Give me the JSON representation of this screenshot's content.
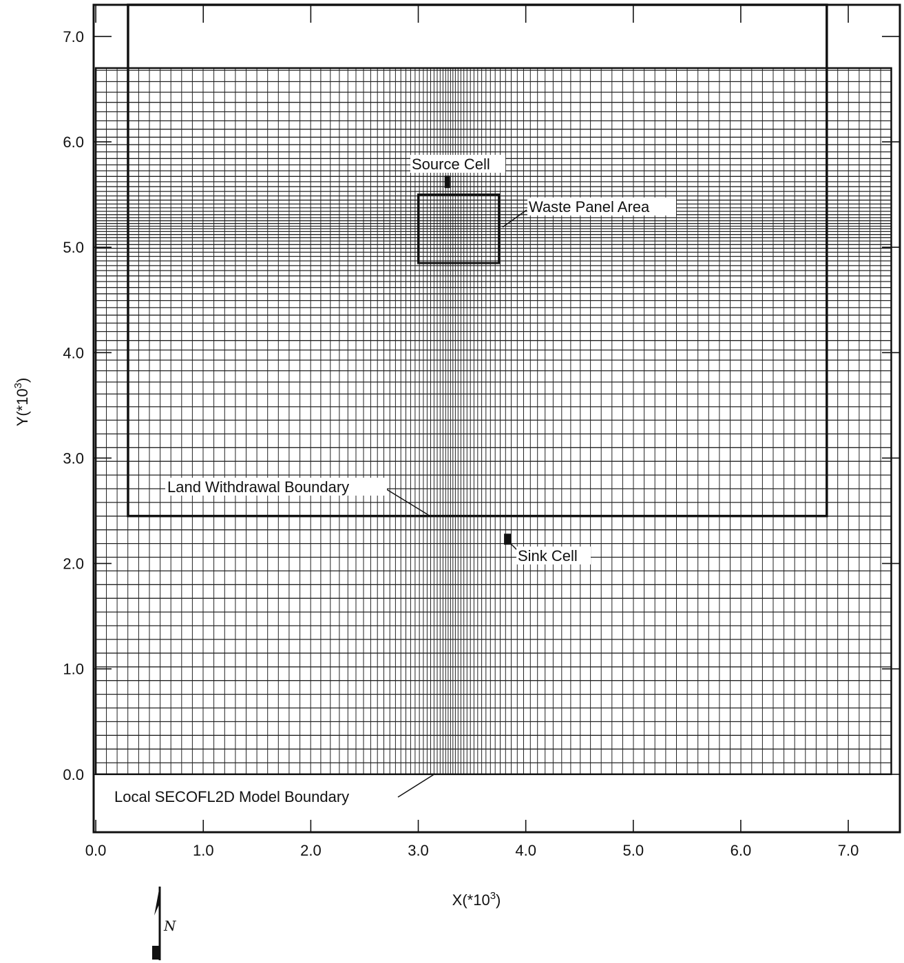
{
  "chart_data": {
    "type": "grid-diagram",
    "xlabel_text": "X(*10",
    "xlabel_exp": "3",
    "xlabel_close": ")",
    "ylabel_text": "Y(*10",
    "ylabel_exp": "3",
    "ylabel_close": ")",
    "xlim": [
      -0.02,
      7.48
    ],
    "ylim": [
      -0.55,
      7.3
    ],
    "x_ticks": [
      0.0,
      1.0,
      2.0,
      3.0,
      4.0,
      5.0,
      6.0,
      7.0
    ],
    "x_tick_labels": [
      "0.0",
      "1.0",
      "2.0",
      "3.0",
      "4.0",
      "5.0",
      "6.0",
      "7.0"
    ],
    "y_ticks": [
      0.0,
      1.0,
      2.0,
      3.0,
      4.0,
      5.0,
      6.0,
      7.0
    ],
    "y_tick_labels": [
      "0.0",
      "1.0",
      "2.0",
      "3.0",
      "4.0",
      "5.0",
      "6.0",
      "7.0"
    ],
    "model_grid": {
      "x0": 0.0,
      "x1": 7.4,
      "y0": 0.0,
      "y1": 6.7,
      "x_center": 3.3,
      "y_center": 5.2
    },
    "land_withdrawal_boundary": {
      "x0": 0.3,
      "x1": 6.8,
      "y0": 2.45,
      "y1": 7.3
    },
    "waste_panel_area": {
      "x0": 3.0,
      "x1": 3.75,
      "y0": 4.85,
      "y1": 5.5
    },
    "source_cell": {
      "x": 3.27,
      "y": 5.62
    },
    "sink_cell": {
      "x": 3.83,
      "y": 2.23
    },
    "annotations": [
      {
        "id": "source-cell",
        "text": "Source Cell"
      },
      {
        "id": "waste-panel-area",
        "text": "Waste Panel Area"
      },
      {
        "id": "land-withdrawal-boundary",
        "text": "Land Withdrawal Boundary"
      },
      {
        "id": "sink-cell",
        "text": "Sink Cell"
      },
      {
        "id": "model-boundary",
        "text": "Local SECOFL2D Model Boundary"
      }
    ],
    "north_arrow_label": "N"
  }
}
